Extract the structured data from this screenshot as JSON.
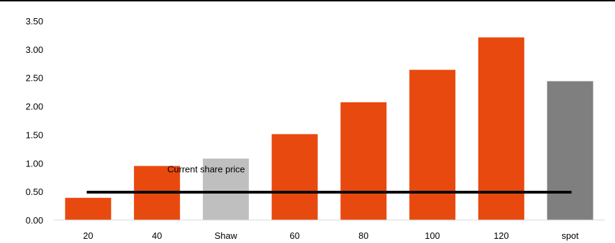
{
  "chart_data": {
    "type": "bar",
    "categories": [
      "20",
      "40",
      "Shaw",
      "60",
      "80",
      "100",
      "120",
      "spot"
    ],
    "values": [
      0.39,
      0.95,
      1.08,
      1.51,
      2.07,
      2.64,
      3.21,
      2.44
    ],
    "bar_colors": [
      "#E8490F",
      "#E8490F",
      "#BFBFBF",
      "#E8490F",
      "#E8490F",
      "#E8490F",
      "#E8490F",
      "#7F7F7F"
    ],
    "ylim": [
      0,
      3.5
    ],
    "yticks": [
      "0.00",
      "0.50",
      "1.00",
      "1.50",
      "2.00",
      "2.50",
      "3.00",
      "3.50"
    ],
    "reference_line": {
      "label": "Current share price",
      "value": 0.49,
      "color": "#000000"
    },
    "grid": false,
    "xlabel": "",
    "ylabel": ""
  }
}
